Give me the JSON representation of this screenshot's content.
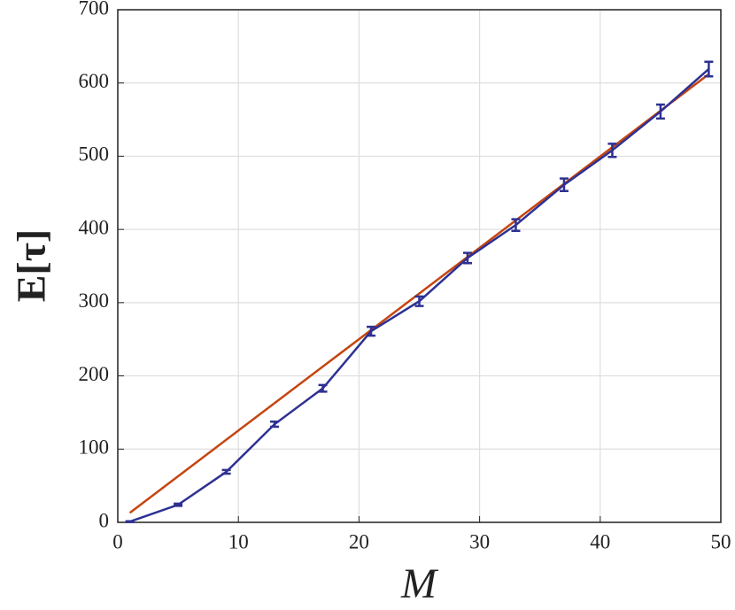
{
  "chart_data": {
    "type": "line",
    "xlabel": "M",
    "ylabel": "E[τ]",
    "xlim": [
      0,
      50
    ],
    "xticks": [
      0,
      10,
      20,
      30,
      40,
      50
    ],
    "ylim": [
      0,
      700
    ],
    "yticks": [
      0,
      100,
      200,
      300,
      400,
      500,
      600,
      700
    ],
    "grid": true,
    "series": [
      {
        "color": "#c5450f",
        "x": [
          1,
          49
        ],
        "values": [
          13,
          612
        ]
      },
      {
        "color": "#2e3192",
        "x": [
          1,
          5,
          9,
          13,
          17,
          21,
          25,
          29,
          33,
          37,
          41,
          45,
          49
        ],
        "values": [
          1,
          24,
          69,
          134,
          183,
          261,
          302,
          361,
          406,
          461,
          508,
          561,
          619
        ],
        "errors": [
          0.5,
          1.5,
          2.5,
          3.5,
          4.5,
          6,
          6.5,
          7,
          8,
          8.5,
          9,
          9.5,
          10
        ]
      }
    ]
  }
}
